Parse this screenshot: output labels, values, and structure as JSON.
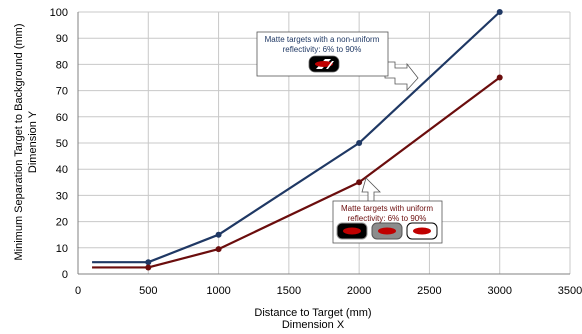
{
  "chart_data": {
    "type": "line",
    "xlabel": "Distance to Target (mm)",
    "xlabel_sub": "Dimension  X",
    "ylabel": "Minimum Separation Target to Background (mm)",
    "ylabel_sub": "Dimension  Y",
    "xlim": [
      0,
      3500
    ],
    "ylim": [
      0,
      100
    ],
    "x_ticks": [
      "0",
      "500",
      "1000",
      "1500",
      "2000",
      "2500",
      "3000",
      "3500"
    ],
    "y_ticks": [
      "0",
      "10",
      "20",
      "30",
      "40",
      "50",
      "60",
      "70",
      "80",
      "90",
      "100"
    ],
    "grid": true,
    "series": [
      {
        "name": "Matte targets with a non-uniform reflectivity: 6% to 90%",
        "color": "#1f3864",
        "x": [
          100,
          500,
          1000,
          2000,
          3000
        ],
        "y": [
          4.5,
          4.5,
          15,
          50,
          100
        ]
      },
      {
        "name": "Matte targets with uniform reflectivity: 6% to 90%",
        "color": "#6b0d0d",
        "x": [
          100,
          500,
          1000,
          2000,
          3000
        ],
        "y": [
          2.5,
          2.5,
          9.5,
          35,
          75
        ]
      }
    ],
    "annotations": [
      {
        "line1": "Matte targets with a non-uniform",
        "line2": "reflectivity: 6% to 90%",
        "color": "#1f3864"
      },
      {
        "line1": "Matte targets with uniform",
        "line2": "reflectivity: 6% to 90%",
        "color": "#6b0d0d"
      }
    ]
  }
}
